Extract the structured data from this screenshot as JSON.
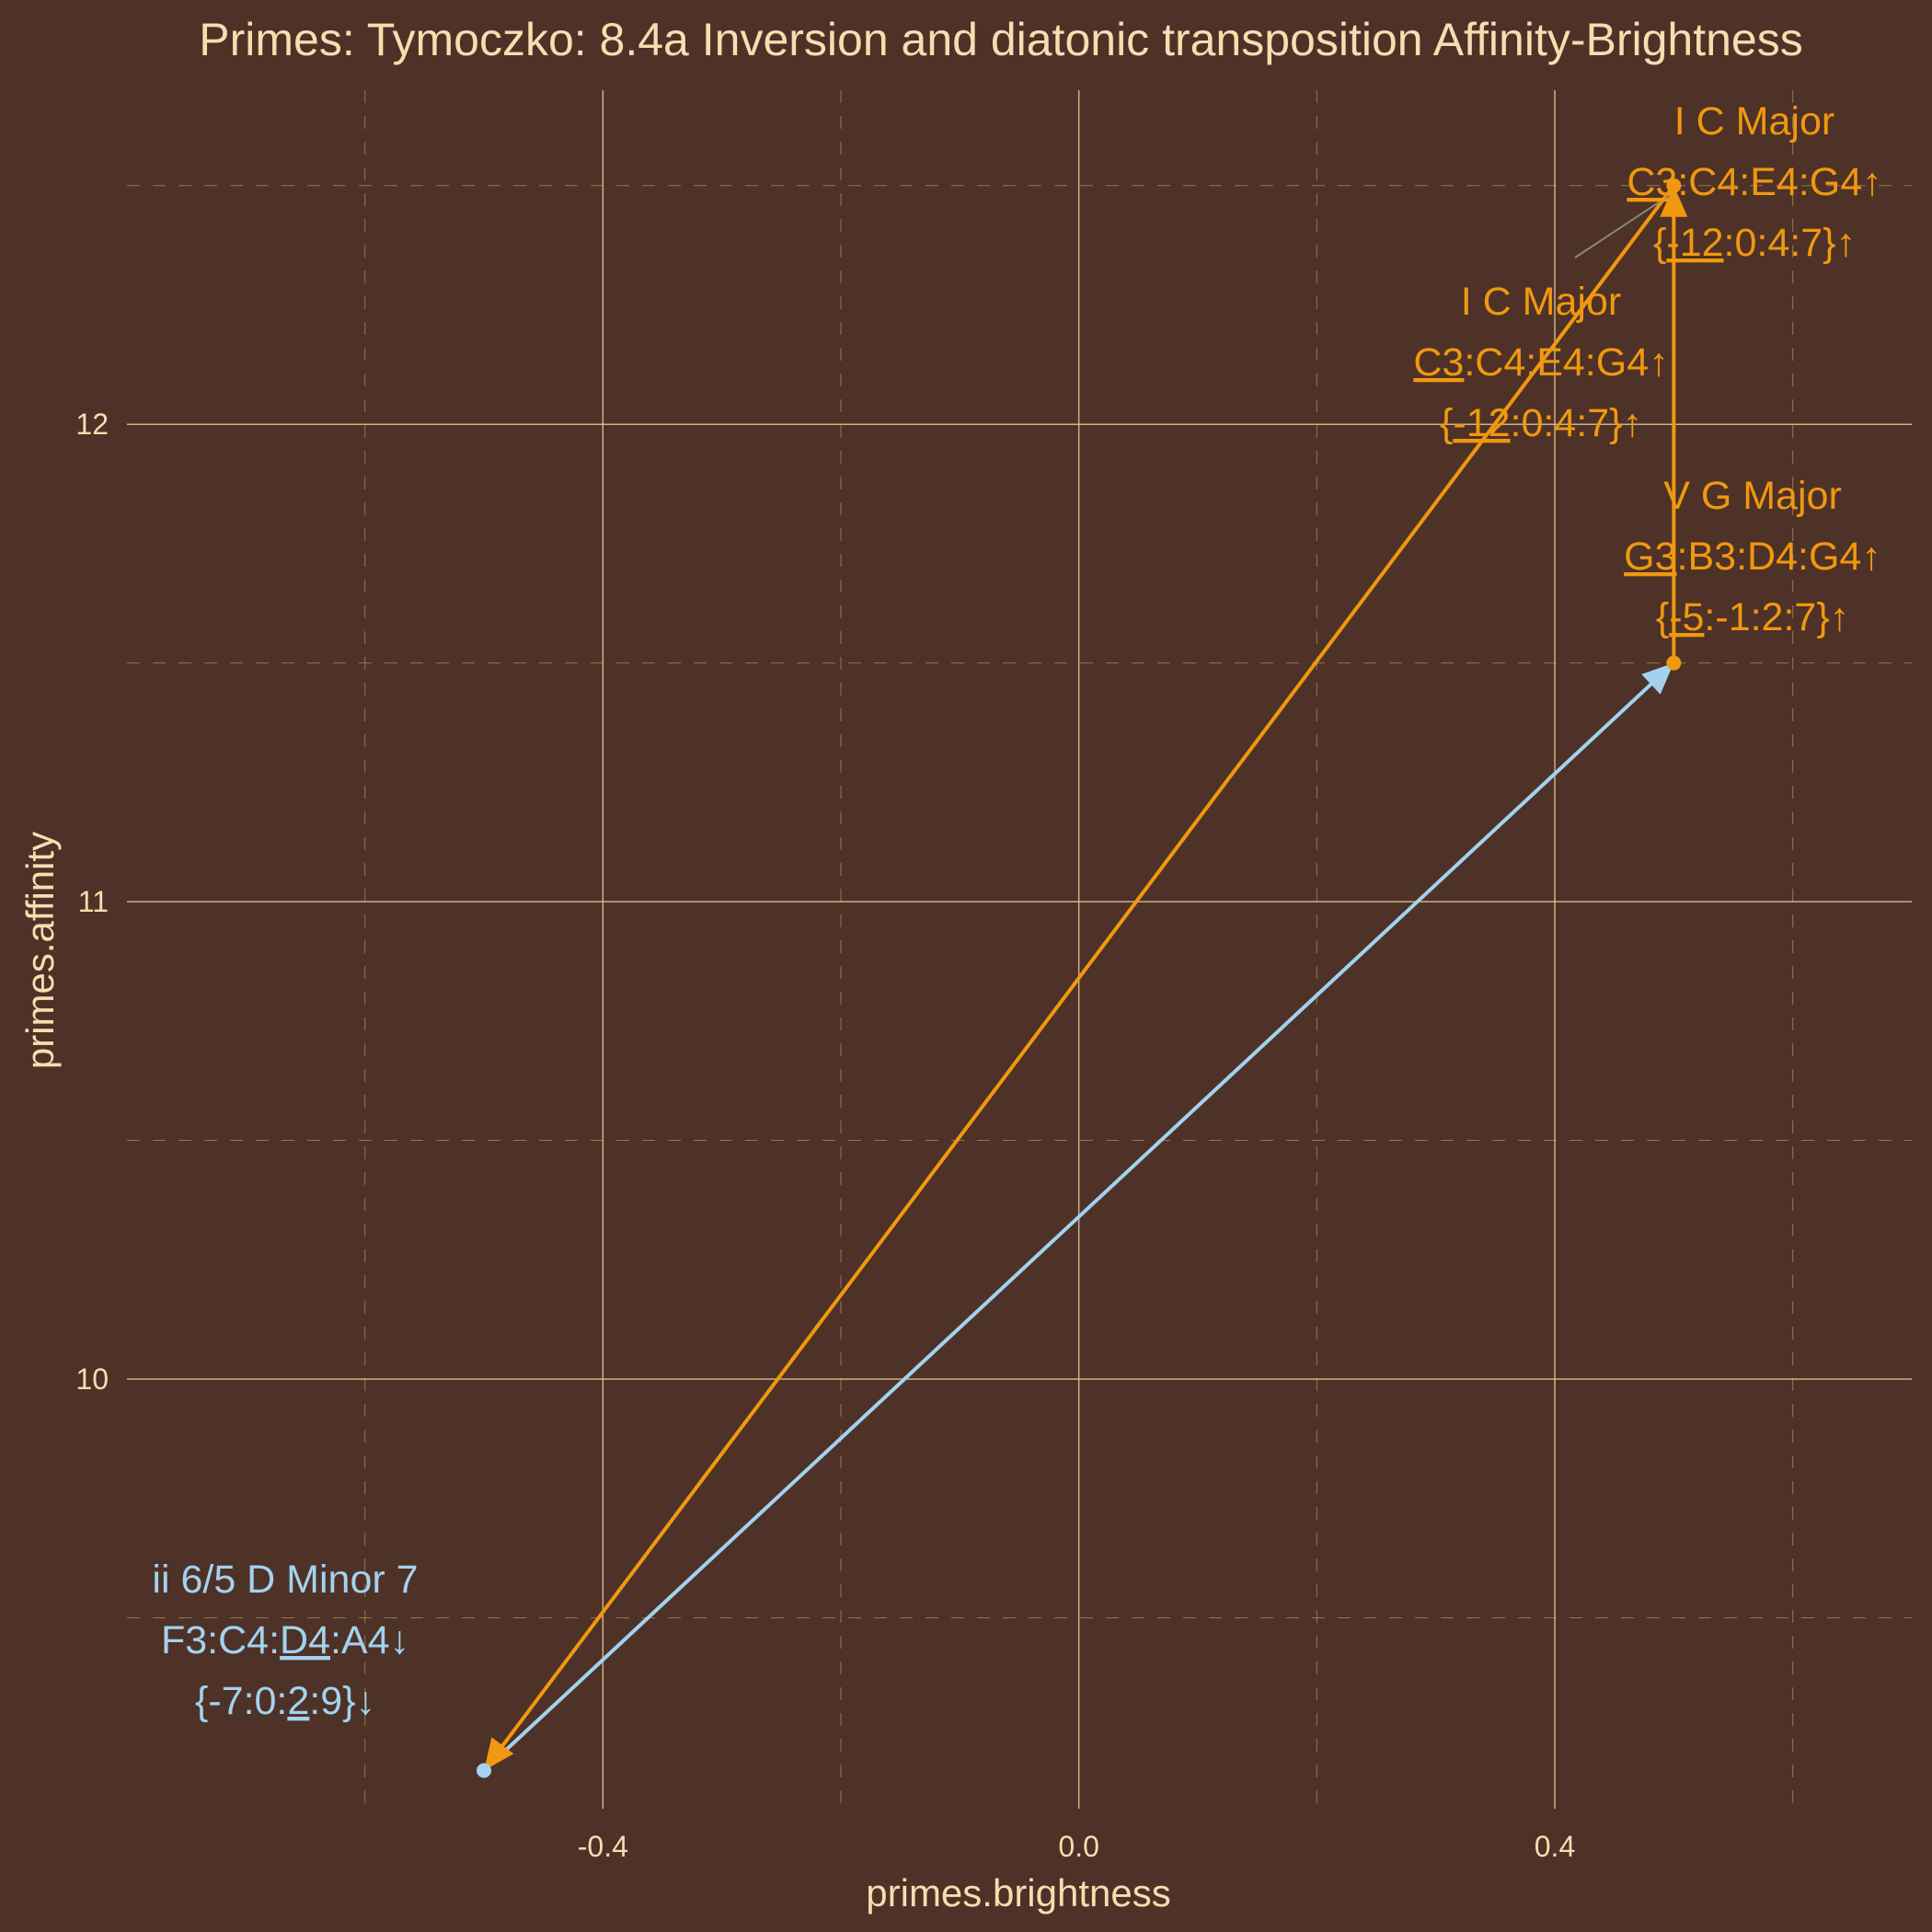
{
  "chart_data": {
    "type": "line",
    "title": "Primes: Tymoczko: 8.4a Inversion and diatonic transposition Affinity-Brightness",
    "xlabel": "primes.brightness",
    "ylabel": "primes.affinity",
    "xlim": [
      -0.8,
      0.7
    ],
    "ylim": [
      9.1,
      12.7
    ],
    "x_ticks": [
      {
        "value": -0.4,
        "label": "-0.4"
      },
      {
        "value": 0.0,
        "label": "0.0"
      },
      {
        "value": 0.4,
        "label": "0.4"
      }
    ],
    "y_ticks": [
      {
        "value": 10,
        "label": "10"
      },
      {
        "value": 11,
        "label": "11"
      },
      {
        "value": 12,
        "label": "12"
      }
    ],
    "grid": true,
    "legend": "none",
    "colors": {
      "background": "#4e3227",
      "text": "#f6deb0",
      "grid": "#e2c894",
      "major_chord": "#f0980f",
      "minor_chord": "#a3d2f0"
    },
    "points": [
      {
        "id": "iiD",
        "x": -0.5,
        "y": 9.18,
        "series": "minor",
        "lines": [
          [
            {
              "t": "ii 6/5 D Minor 7"
            }
          ],
          [
            {
              "t": "F3:C4:"
            },
            {
              "t": "D4",
              "u": true
            },
            {
              "t": ":A4↓"
            }
          ],
          [
            {
              "t": "{-7:0:"
            },
            {
              "t": "2",
              "u": true
            },
            {
              "t": ":9}↓"
            }
          ]
        ]
      },
      {
        "id": "VG",
        "x": 0.5,
        "y": 11.5,
        "series": "major",
        "lines": [
          [
            {
              "t": "V G Major"
            }
          ],
          [
            {
              "t": "G3",
              "u": true
            },
            {
              "t": ":B3:D4:G4↑"
            }
          ],
          [
            {
              "t": "{"
            },
            {
              "t": "-5",
              "u": true
            },
            {
              "t": ":-1:2:7}↑"
            }
          ]
        ]
      },
      {
        "id": "IC_upper",
        "x": 0.5,
        "y": 12.5,
        "series": "major",
        "lines": [
          [
            {
              "t": "I C Major"
            }
          ],
          [
            {
              "t": "C3",
              "u": true
            },
            {
              "t": ":C4:E4:G4↑"
            }
          ],
          [
            {
              "t": "{"
            },
            {
              "t": "-12",
              "u": true
            },
            {
              "t": ":0:4:7}↑"
            }
          ]
        ]
      },
      {
        "id": "IC_lower",
        "x": 0.5,
        "y": 12.5,
        "series": "major",
        "lines": [
          [
            {
              "t": "I C Major"
            }
          ],
          [
            {
              "t": "C3",
              "u": true
            },
            {
              "t": ":C4:E4:G4↑"
            }
          ],
          [
            {
              "t": "{"
            },
            {
              "t": "-12",
              "u": true
            },
            {
              "t": ":0:4:7}↑"
            }
          ]
        ]
      }
    ],
    "arrows": [
      {
        "from": [
          -0.5,
          9.18
        ],
        "to": [
          0.5,
          11.5
        ],
        "color": "minor_chord"
      },
      {
        "from": [
          0.5,
          11.5
        ],
        "to": [
          0.5,
          12.5
        ],
        "color": "major_chord"
      },
      {
        "from": [
          0.5,
          12.5
        ],
        "to": [
          -0.5,
          9.18
        ],
        "color": "major_chord"
      }
    ]
  }
}
